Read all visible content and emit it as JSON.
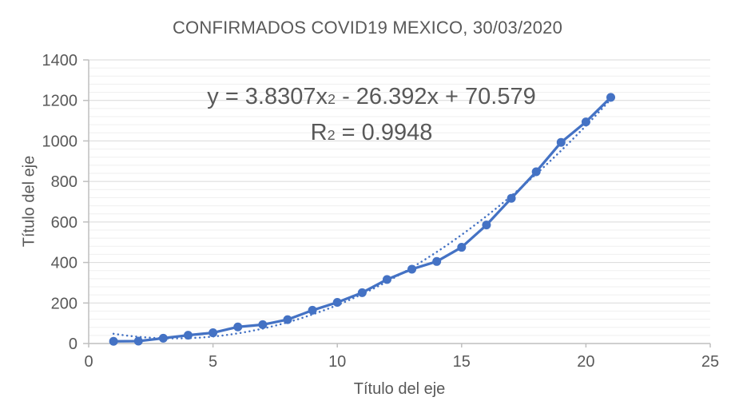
{
  "chart_data": {
    "type": "line",
    "title": "CONFIRMADOS COVID19 MEXICO, 30/03/2020",
    "xlabel": "Título del eje",
    "ylabel": "Título del eje",
    "x": [
      1,
      2,
      3,
      4,
      5,
      6,
      7,
      8,
      9,
      10,
      11,
      12,
      13,
      14,
      15,
      16,
      17,
      18,
      19,
      20,
      21
    ],
    "series": [
      {
        "name": "Confirmados",
        "values": [
          11,
          12,
          26,
          41,
          53,
          82,
          93,
          118,
          164,
          203,
          251,
          316,
          367,
          405,
          475,
          585,
          717,
          848,
          993,
          1094,
          1215
        ]
      }
    ],
    "trendline": {
      "type": "polynomial",
      "order": 2,
      "a": 3.8307,
      "b": -26.392,
      "c": 70.579,
      "r_squared": 0.9948,
      "x_range": [
        1,
        21
      ],
      "style": "dotted"
    },
    "xlim": [
      0,
      25
    ],
    "ylim": [
      0,
      1400
    ],
    "x_ticks": [
      0,
      5,
      10,
      15,
      20,
      25
    ],
    "y_ticks": [
      0,
      200,
      400,
      600,
      800,
      1000,
      1200,
      1400
    ],
    "y_major_unit": 200,
    "y_minor_unit": 40,
    "grid": "horizontal major and minor, no vertical gridlines",
    "legend": "none",
    "marker": "circle",
    "colors": {
      "series": "#4472C4",
      "trendline": "#4472C4",
      "title_text": "#595959",
      "axis_text": "#595959",
      "axis_line": "#BFBFBF",
      "major_grid": "#D9D9D9",
      "minor_grid": "#EFEFEF",
      "background": "#FFFFFF"
    }
  },
  "annotation": {
    "equation": {
      "pre": "y = 3.8307x",
      "sup": "2",
      "post": " - 26.392x + 70.579"
    },
    "r2": {
      "pre": "R",
      "sup": "2",
      "post": " = 0.9948"
    }
  }
}
